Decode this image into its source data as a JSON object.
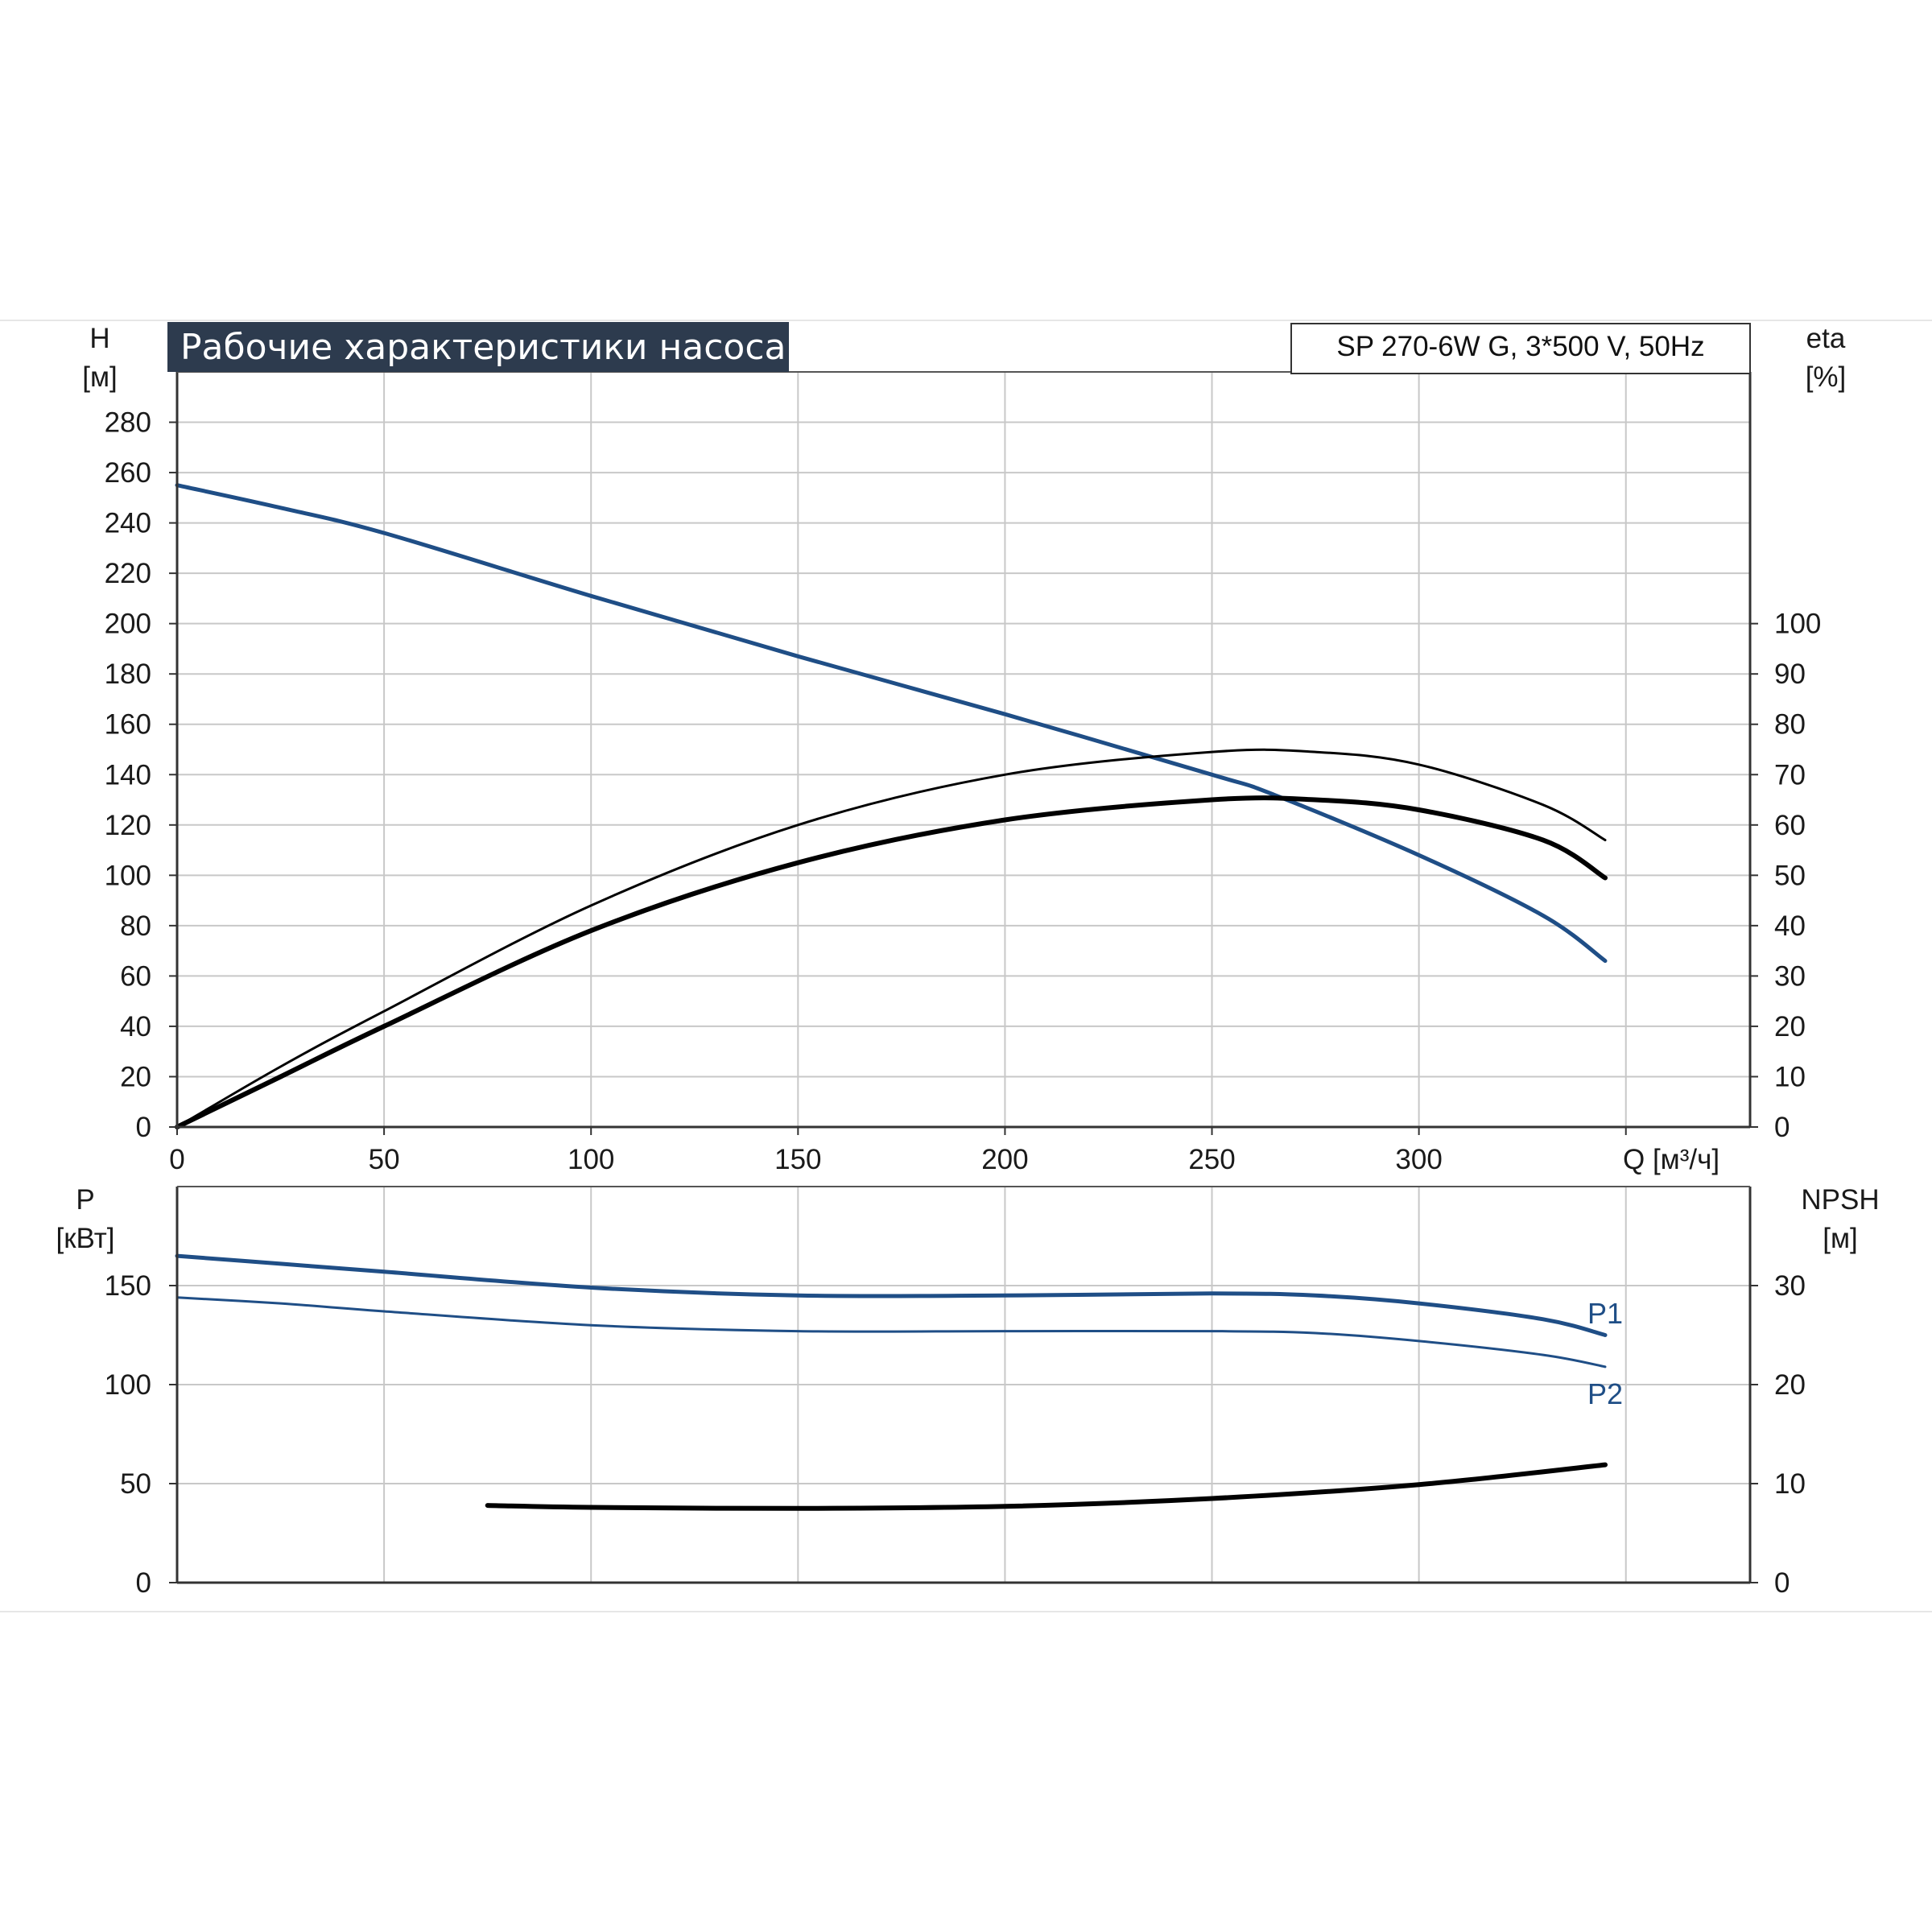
{
  "header": {
    "title": "Рабочие характеристики насоса",
    "model": "SP 270-6W G, 3*500 V, 50Hz"
  },
  "colors": {
    "head_curve": "#1f4e86",
    "power_curve": "#1f4e86",
    "efficiency_curve": "#000000",
    "npsh_curve": "#000000",
    "grid": "#c8c8c8",
    "banner": "#2d3b4e"
  },
  "chart_data": [
    {
      "type": "line",
      "panel": "top",
      "xlabel": "Q [м³/ч]",
      "xlim": [
        0,
        380
      ],
      "xticks": [
        0,
        50,
        100,
        150,
        200,
        250,
        300
      ],
      "ylabel_left": [
        "H",
        "[м]"
      ],
      "ylabel_right": [
        "eta",
        "[%]"
      ],
      "ylim_left": [
        0,
        300
      ],
      "ylim_right": [
        0,
        150
      ],
      "yticks_left": [
        0,
        20,
        40,
        60,
        80,
        100,
        120,
        140,
        160,
        180,
        200,
        220,
        240,
        260,
        280
      ],
      "yticks_right": [
        0,
        10,
        20,
        30,
        40,
        50,
        60,
        70,
        80,
        90,
        100
      ],
      "grid": true,
      "series": [
        {
          "axis": "left",
          "color": "#1f4e86",
          "x": [
            0,
            25,
            50,
            100,
            150,
            200,
            250,
            265,
            300,
            330,
            345
          ],
          "y": [
            255,
            246,
            236,
            211,
            187,
            164,
            140,
            132,
            108,
            84,
            66
          ]
        },
        {
          "axis": "right",
          "color": "#000000",
          "x": [
            0,
            25,
            50,
            100,
            150,
            200,
            250,
            275,
            300,
            330,
            345
          ],
          "y": [
            0,
            12,
            23,
            44,
            60,
            70,
            74.5,
            74.5,
            72,
            64,
            57
          ]
        },
        {
          "axis": "right",
          "color": "#000000",
          "x": [
            0,
            25,
            50,
            100,
            150,
            200,
            250,
            275,
            300,
            330,
            345
          ],
          "y": [
            0,
            10,
            20,
            39,
            52.5,
            61,
            65,
            65,
            63,
            57,
            49.5
          ]
        }
      ]
    },
    {
      "type": "line",
      "panel": "bottom",
      "xlim": [
        0,
        380
      ],
      "ylabel_left": [
        "P",
        "[кВт]"
      ],
      "ylabel_right": [
        "NPSH",
        "[м]"
      ],
      "ylim_left": [
        0,
        200
      ],
      "ylim_right": [
        0,
        40
      ],
      "yticks_left": [
        0,
        50,
        100,
        150
      ],
      "yticks_right": [
        0,
        10,
        20,
        30
      ],
      "grid": true,
      "series": [
        {
          "name": "P1",
          "axis": "left",
          "color": "#1f4e86",
          "x": [
            0,
            25,
            50,
            100,
            150,
            200,
            250,
            275,
            300,
            330,
            345
          ],
          "y": [
            165,
            161,
            157,
            149,
            145,
            145,
            146,
            145,
            141,
            133,
            125
          ]
        },
        {
          "name": "P2",
          "axis": "left",
          "color": "#1f4e86",
          "x": [
            0,
            25,
            50,
            100,
            150,
            200,
            250,
            275,
            300,
            330,
            345
          ],
          "y": [
            144,
            141,
            137,
            130,
            127,
            127,
            127,
            126,
            122,
            115,
            109
          ]
        },
        {
          "axis": "right",
          "color": "#000000",
          "x": [
            75,
            100,
            150,
            200,
            250,
            300,
            345
          ],
          "y": [
            7.8,
            7.6,
            7.5,
            7.7,
            8.5,
            9.9,
            11.9
          ]
        }
      ]
    }
  ]
}
